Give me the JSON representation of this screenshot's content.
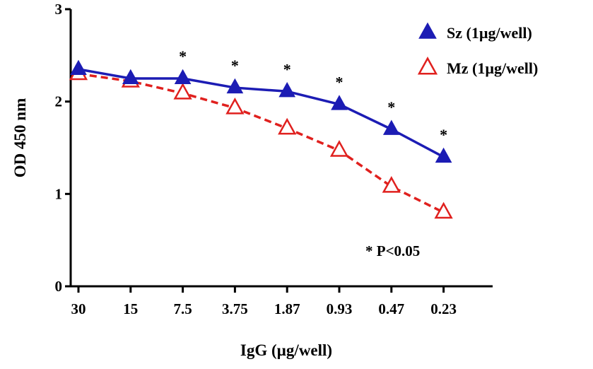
{
  "chart_data": {
    "type": "line",
    "title": "",
    "xlabel": "IgG (µg/well)",
    "ylabel": "OD  450 nm",
    "categories": [
      "30",
      "15",
      "7.5",
      "3.75",
      "1.87",
      "0.93",
      "0.47",
      "0.23"
    ],
    "ylim": [
      0,
      3
    ],
    "yticks": [
      "0",
      "1",
      "2",
      "3"
    ],
    "grid": false,
    "legend_position": "top-right",
    "series": [
      {
        "name": "Sz (1µg/well)",
        "values": [
          2.35,
          2.25,
          2.25,
          2.15,
          2.11,
          1.97,
          1.7,
          1.4
        ],
        "color": "#1c1cb4",
        "line_style": "solid",
        "marker": "filled-triangle"
      },
      {
        "name": "Mz (1µg/well)",
        "values": [
          2.3,
          2.22,
          2.09,
          1.93,
          1.71,
          1.47,
          1.08,
          0.8
        ],
        "color": "#e0201e",
        "line_style": "dashed",
        "marker": "open-triangle"
      }
    ],
    "significance_marks": [
      "",
      "",
      "*",
      "*",
      "*",
      "*",
      "*",
      "*"
    ],
    "annotation": "* P<0.05"
  }
}
